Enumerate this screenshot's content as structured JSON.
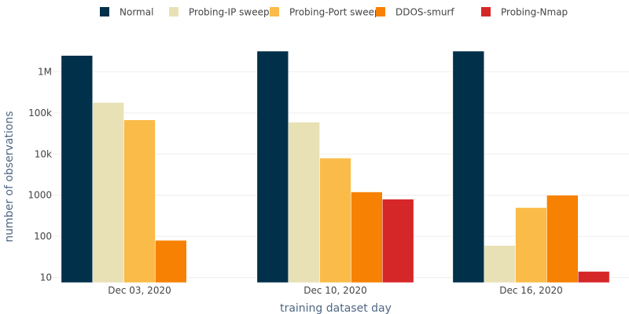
{
  "chart_data": {
    "type": "bar",
    "barmode": "group",
    "yscale": "log",
    "categories": [
      "Dec 03, 2020",
      "Dec 10, 2020",
      "Dec 16, 2020"
    ],
    "series": [
      {
        "name": "Normal",
        "color": "#00304a",
        "values": [
          2500000,
          3200000,
          3200000
        ]
      },
      {
        "name": "Probing-IP sweep",
        "color": "#e9e1b6",
        "values": [
          180000,
          60000,
          60
        ]
      },
      {
        "name": "Probing-Port sweep",
        "color": "#fbbb48",
        "values": [
          68000,
          8000,
          500
        ]
      },
      {
        "name": "DDOS-smurf",
        "color": "#f78102",
        "values": [
          80,
          1200,
          1000
        ]
      },
      {
        "name": "Probing-Nmap",
        "color": "#d62728",
        "values": [
          null,
          800,
          14
        ]
      }
    ],
    "xlabel": "training dataset day",
    "ylabel": "number of observations",
    "yticks": [
      {
        "value": 10,
        "label": "10"
      },
      {
        "value": 100,
        "label": "100"
      },
      {
        "value": 1000,
        "label": "1000"
      },
      {
        "value": 10000,
        "label": "10k"
      },
      {
        "value": 100000,
        "label": "100k"
      },
      {
        "value": 1000000,
        "label": "1M"
      }
    ],
    "ylim": [
      7.5,
      4000000
    ],
    "legend": "top, horizontal",
    "grid": true
  }
}
